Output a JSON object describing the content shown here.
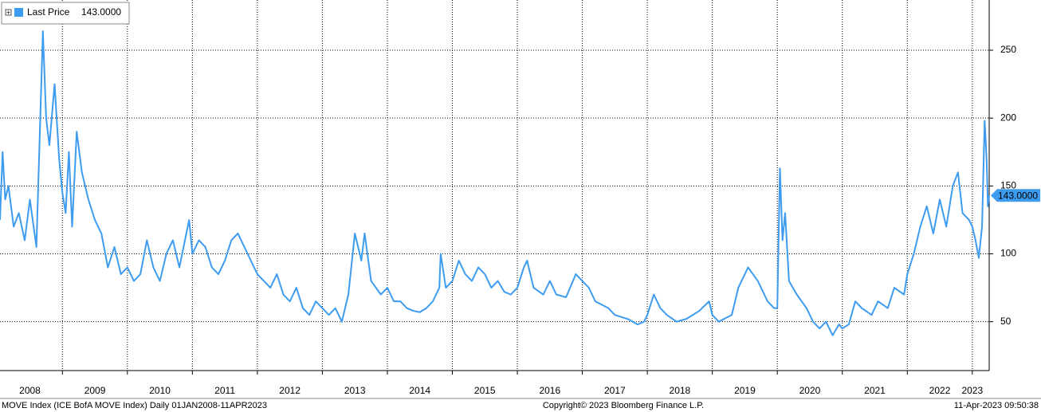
{
  "chart_data": {
    "type": "line",
    "footer_left": "MOVE Index (ICE BofA MOVE Index)  Daily 01JAN2008-11APR2023",
    "footer_center": "Copyright© 2023 Bloomberg Finance L.P.",
    "footer_right": "11-Apr-2023 09:50:38",
    "last": {
      "value": 143,
      "label": "143.0000"
    },
    "xlim": [
      2008.04,
      2023.26
    ],
    "ylim": [
      14,
      287
    ],
    "yticks": [
      50,
      100,
      150,
      200,
      250
    ],
    "xticks": [
      {
        "value": 2008.5,
        "label": "2008"
      },
      {
        "value": 2009.5,
        "label": "2009"
      },
      {
        "value": 2010.5,
        "label": "2010"
      },
      {
        "value": 2011.5,
        "label": "2011"
      },
      {
        "value": 2012.5,
        "label": "2012"
      },
      {
        "value": 2013.5,
        "label": "2013"
      },
      {
        "value": 2014.5,
        "label": "2014"
      },
      {
        "value": 2015.5,
        "label": "2015"
      },
      {
        "value": 2016.5,
        "label": "2016"
      },
      {
        "value": 2017.5,
        "label": "2017"
      },
      {
        "value": 2018.5,
        "label": "2018"
      },
      {
        "value": 2019.5,
        "label": "2019"
      },
      {
        "value": 2020.5,
        "label": "2020"
      },
      {
        "value": 2021.5,
        "label": "2021"
      },
      {
        "value": 2022.5,
        "label": "2022"
      },
      {
        "value": 2023.0,
        "label": "2023"
      }
    ],
    "xgrid": [
      2009,
      2010,
      2011,
      2012,
      2013,
      2014,
      2015,
      2016,
      2017,
      2018,
      2019,
      2020,
      2021,
      2022,
      2023
    ],
    "grid": true,
    "series": [
      {
        "name": "Last Price",
        "color": "#3d9cf0",
        "x": [
          2008.04,
          2008.08,
          2008.12,
          2008.17,
          2008.25,
          2008.33,
          2008.42,
          2008.5,
          2008.6,
          2008.7,
          2008.75,
          2008.8,
          2008.88,
          2008.95,
          2009,
          2009.05,
          2009.1,
          2009.15,
          2009.22,
          2009.3,
          2009.4,
          2009.5,
          2009.6,
          2009.7,
          2009.8,
          2009.9,
          2010,
          2010.1,
          2010.2,
          2010.3,
          2010.4,
          2010.5,
          2010.6,
          2010.7,
          2010.8,
          2010.95,
          2011,
          2011.1,
          2011.2,
          2011.3,
          2011.4,
          2011.5,
          2011.6,
          2011.7,
          2011.8,
          2011.9,
          2012,
          2012.1,
          2012.2,
          2012.3,
          2012.4,
          2012.5,
          2012.6,
          2012.7,
          2012.8,
          2012.9,
          2013,
          2013.1,
          2013.2,
          2013.3,
          2013.4,
          2013.5,
          2013.6,
          2013.65,
          2013.75,
          2013.9,
          2014,
          2014.1,
          2014.2,
          2014.3,
          2014.4,
          2014.5,
          2014.6,
          2014.7,
          2014.8,
          2014.82,
          2014.9,
          2015,
          2015.1,
          2015.2,
          2015.3,
          2015.4,
          2015.5,
          2015.6,
          2015.7,
          2015.8,
          2015.9,
          2016,
          2016.1,
          2016.15,
          2016.25,
          2016.4,
          2016.5,
          2016.6,
          2016.75,
          2016.9,
          2017,
          2017.1,
          2017.2,
          2017.4,
          2017.5,
          2017.7,
          2017.85,
          2017.95,
          2018,
          2018.1,
          2018.2,
          2018.3,
          2018.45,
          2018.6,
          2018.8,
          2018.95,
          2019,
          2019.1,
          2019.3,
          2019.4,
          2019.55,
          2019.7,
          2019.85,
          2019.95,
          2020,
          2020.04,
          2020.08,
          2020.12,
          2020.18,
          2020.3,
          2020.45,
          2020.55,
          2020.65,
          2020.75,
          2020.85,
          2020.95,
          2021,
          2021.1,
          2021.2,
          2021.3,
          2021.45,
          2021.55,
          2021.7,
          2021.8,
          2021.95,
          2022,
          2022.1,
          2022.2,
          2022.3,
          2022.4,
          2022.5,
          2022.6,
          2022.7,
          2022.78,
          2022.85,
          2022.95,
          2023,
          2023.05,
          2023.1,
          2023.15,
          2023.19,
          2023.22,
          2023.24,
          2023.26
        ],
        "values": [
          125,
          175,
          140,
          150,
          120,
          130,
          110,
          140,
          105,
          264,
          200,
          180,
          225,
          170,
          145,
          130,
          175,
          120,
          190,
          160,
          140,
          125,
          115,
          90,
          105,
          85,
          90,
          80,
          85,
          110,
          90,
          80,
          100,
          110,
          90,
          125,
          100,
          110,
          105,
          90,
          85,
          95,
          110,
          115,
          105,
          95,
          85,
          80,
          75,
          85,
          70,
          65,
          75,
          60,
          55,
          65,
          60,
          55,
          60,
          50,
          70,
          115,
          95,
          115,
          80,
          70,
          75,
          65,
          65,
          60,
          58,
          57,
          60,
          65,
          75,
          100,
          75,
          80,
          95,
          85,
          80,
          90,
          85,
          75,
          80,
          72,
          70,
          75,
          90,
          95,
          75,
          70,
          80,
          70,
          68,
          85,
          80,
          75,
          65,
          60,
          55,
          52,
          48,
          50,
          55,
          70,
          60,
          55,
          50,
          52,
          58,
          65,
          55,
          50,
          55,
          75,
          90,
          80,
          65,
          60,
          60,
          163,
          110,
          130,
          80,
          70,
          60,
          50,
          45,
          50,
          40,
          48,
          45,
          48,
          65,
          60,
          55,
          65,
          60,
          75,
          70,
          85,
          100,
          120,
          135,
          115,
          140,
          120,
          150,
          160,
          130,
          125,
          120,
          110,
          97,
          120,
          198,
          170,
          135,
          143
        ]
      }
    ]
  }
}
